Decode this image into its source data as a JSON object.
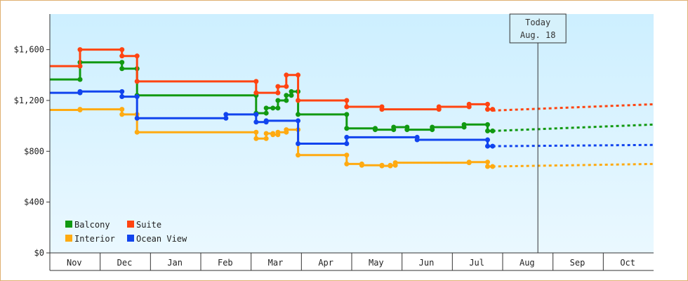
{
  "chart_data": {
    "type": "line",
    "step": true,
    "yticks": [
      "$0",
      "$400",
      "$800",
      "$1,200",
      "$1,600"
    ],
    "ylim": [
      0,
      1880
    ],
    "xlabels": [
      "Nov",
      "Dec",
      "Jan",
      "Feb",
      "Mar",
      "Apr",
      "May",
      "Jun",
      "Jul",
      "Aug",
      "Sep",
      "Oct"
    ],
    "x_day_range": [
      0,
      360
    ],
    "today": {
      "label": "Today",
      "date": "Aug. 18",
      "day": 291
    },
    "legend": {
      "placement": "bottom-left"
    },
    "series": [
      {
        "name": "Balcony",
        "color": "#119911",
        "points": [
          [
            0,
            1365
          ],
          [
            18,
            1365
          ],
          [
            18,
            1500
          ],
          [
            43,
            1500
          ],
          [
            43,
            1450
          ],
          [
            52,
            1450
          ],
          [
            52,
            1240
          ],
          [
            123,
            1240
          ],
          [
            123,
            1100
          ],
          [
            129,
            1100
          ],
          [
            129,
            1140
          ],
          [
            133,
            1140
          ],
          [
            133,
            1140
          ],
          [
            136,
            1140
          ],
          [
            136,
            1200
          ],
          [
            141,
            1200
          ],
          [
            141,
            1240
          ],
          [
            144,
            1240
          ],
          [
            144,
            1270
          ],
          [
            148,
            1270
          ],
          [
            148,
            1090
          ],
          [
            177,
            1090
          ],
          [
            177,
            980
          ],
          [
            194,
            980
          ],
          [
            194,
            970
          ],
          [
            205,
            970
          ],
          [
            205,
            990
          ],
          [
            213,
            990
          ],
          [
            213,
            970
          ],
          [
            228,
            970
          ],
          [
            228,
            990
          ],
          [
            247,
            990
          ],
          [
            247,
            1010
          ],
          [
            261,
            1010
          ],
          [
            261,
            960
          ],
          [
            264,
            960
          ]
        ],
        "forecast": [
          [
            264,
            960
          ],
          [
            360,
            1010
          ]
        ]
      },
      {
        "name": "Suite",
        "color": "#ff4411",
        "points": [
          [
            0,
            1470
          ],
          [
            18,
            1470
          ],
          [
            18,
            1600
          ],
          [
            43,
            1600
          ],
          [
            43,
            1550
          ],
          [
            52,
            1550
          ],
          [
            52,
            1350
          ],
          [
            123,
            1350
          ],
          [
            123,
            1260
          ],
          [
            136,
            1260
          ],
          [
            136,
            1310
          ],
          [
            141,
            1310
          ],
          [
            141,
            1400
          ],
          [
            148,
            1400
          ],
          [
            148,
            1200
          ],
          [
            177,
            1200
          ],
          [
            177,
            1150
          ],
          [
            198,
            1150
          ],
          [
            198,
            1130
          ],
          [
            232,
            1130
          ],
          [
            232,
            1150
          ],
          [
            250,
            1150
          ],
          [
            250,
            1170
          ],
          [
            261,
            1170
          ],
          [
            261,
            1130
          ],
          [
            264,
            1130
          ]
        ],
        "forecast": [
          [
            264,
            1120
          ],
          [
            360,
            1170
          ]
        ]
      },
      {
        "name": "Interior",
        "color": "#ffaa11",
        "points": [
          [
            0,
            1125
          ],
          [
            18,
            1125
          ],
          [
            18,
            1130
          ],
          [
            43,
            1130
          ],
          [
            43,
            1090
          ],
          [
            52,
            1090
          ],
          [
            52,
            950
          ],
          [
            123,
            950
          ],
          [
            123,
            900
          ],
          [
            129,
            900
          ],
          [
            129,
            940
          ],
          [
            133,
            940
          ],
          [
            133,
            930
          ],
          [
            136,
            930
          ],
          [
            136,
            950
          ],
          [
            141,
            950
          ],
          [
            141,
            970
          ],
          [
            148,
            970
          ],
          [
            148,
            770
          ],
          [
            177,
            770
          ],
          [
            177,
            700
          ],
          [
            186,
            700
          ],
          [
            186,
            690
          ],
          [
            198,
            690
          ],
          [
            198,
            685
          ],
          [
            203,
            685
          ],
          [
            203,
            690
          ],
          [
            206,
            690
          ],
          [
            206,
            710
          ],
          [
            250,
            710
          ],
          [
            250,
            715
          ],
          [
            261,
            715
          ],
          [
            261,
            680
          ],
          [
            264,
            680
          ]
        ],
        "forecast": [
          [
            264,
            680
          ],
          [
            360,
            700
          ]
        ]
      },
      {
        "name": "Ocean View",
        "color": "#1144ee",
        "points": [
          [
            0,
            1260
          ],
          [
            18,
            1260
          ],
          [
            18,
            1270
          ],
          [
            43,
            1270
          ],
          [
            43,
            1230
          ],
          [
            52,
            1230
          ],
          [
            52,
            1060
          ],
          [
            105,
            1060
          ],
          [
            105,
            1090
          ],
          [
            123,
            1090
          ],
          [
            123,
            1030
          ],
          [
            129,
            1030
          ],
          [
            129,
            1040
          ],
          [
            148,
            1040
          ],
          [
            148,
            860
          ],
          [
            177,
            860
          ],
          [
            177,
            910
          ],
          [
            219,
            910
          ],
          [
            219,
            890
          ],
          [
            261,
            890
          ],
          [
            261,
            840
          ],
          [
            264,
            840
          ]
        ],
        "forecast": [
          [
            264,
            840
          ],
          [
            360,
            850
          ]
        ]
      }
    ]
  }
}
